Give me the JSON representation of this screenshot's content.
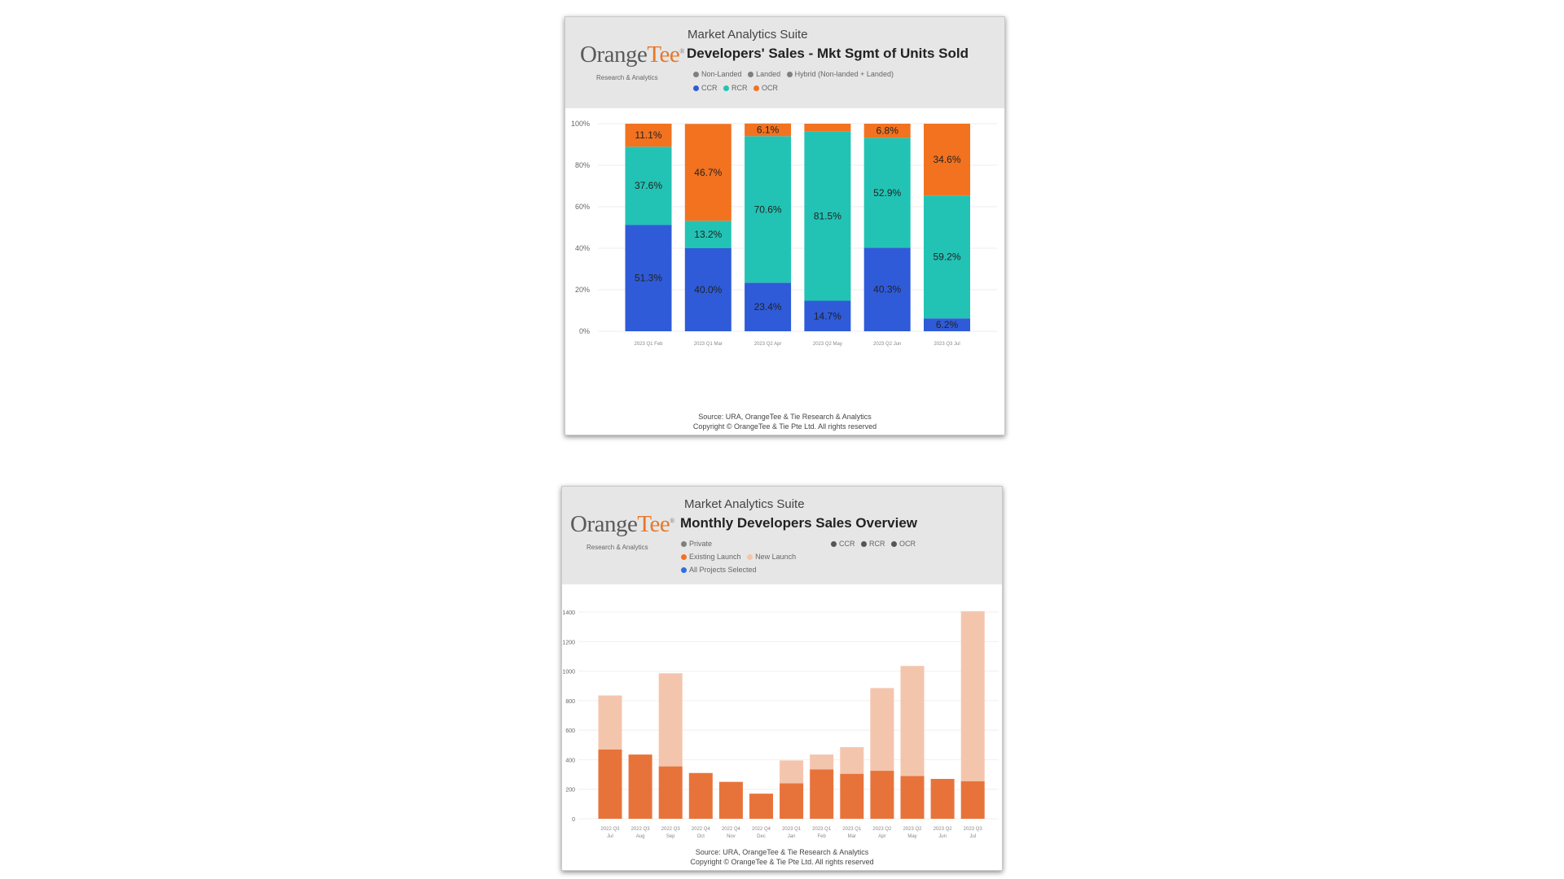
{
  "charts": [
    {
      "brand": {
        "name_a": "Orange",
        "name_b": "Tee",
        "sub": "Research & Analytics"
      },
      "suite": "Market Analytics Suite",
      "title": "Developers' Sales - Mkt Sgmt of Units Sold",
      "legend_row1": [
        {
          "label": "Non-Landed",
          "color": "#7f7f7f"
        },
        {
          "label": "Landed",
          "color": "#7f7f7f"
        },
        {
          "label": "Hybrid (Non-landed + Landed)",
          "color": "#7f7f7f"
        }
      ],
      "legend_row2": [
        {
          "label": "CCR",
          "color": "#2f5bd8"
        },
        {
          "label": "RCR",
          "color": "#22c3b4"
        },
        {
          "label": "OCR",
          "color": "#f27220"
        }
      ],
      "footer_source": "Source: URA, OrangeTee & Tie Research & Analytics",
      "footer_copyright": "Copyright © OrangeTee & Tie Pte Ltd. All rights reserved"
    },
    {
      "brand": {
        "name_a": "Orange",
        "name_b": "Tee",
        "sub": "Research & Analytics"
      },
      "suite": "Market Analytics Suite",
      "title": "Monthly Developers Sales Overview",
      "legend_row1": [
        {
          "label": "Private",
          "color": "#7f7f7f"
        }
      ],
      "legend_row2": [
        {
          "label": "Existing Launch",
          "color": "#f27220"
        },
        {
          "label": "New Launch",
          "color": "#f6c4a6"
        }
      ],
      "legend_row3": [
        {
          "label": "All Projects Selected",
          "color": "#2f6fe0"
        }
      ],
      "legend_right": [
        {
          "label": "CCR",
          "color": "#555555"
        },
        {
          "label": "RCR",
          "color": "#555555"
        },
        {
          "label": "OCR",
          "color": "#555555"
        }
      ],
      "footer_source": "Source: URA, OrangeTee & Tie Research & Analytics",
      "footer_copyright": "Copyright © OrangeTee & Tie Pte Ltd. All rights reserved"
    }
  ],
  "chart_data": [
    {
      "type": "bar",
      "stacked": true,
      "normalized": true,
      "categories": [
        "2023 Q1 Feb",
        "2023 Q1 Mar",
        "2023 Q2 Apr",
        "2023 Q2 May",
        "2023 Q2 Jun",
        "2023 Q3 Jul"
      ],
      "series": [
        {
          "name": "CCR",
          "color": "#2f5bd8",
          "values": [
            51.3,
            40.0,
            23.4,
            14.7,
            40.3,
            6.2
          ]
        },
        {
          "name": "RCR",
          "color": "#22c3b4",
          "values": [
            37.6,
            13.2,
            70.6,
            81.5,
            52.9,
            59.2
          ]
        },
        {
          "name": "OCR",
          "color": "#f27220",
          "values": [
            11.1,
            46.7,
            6.1,
            3.8,
            6.8,
            34.6
          ]
        }
      ],
      "data_labels": [
        [
          "51.3%",
          "40.0%",
          "23.4%",
          "14.7%",
          "40.3%",
          "6.2%"
        ],
        [
          "37.6%",
          "13.2%",
          "70.6%",
          "81.5%",
          "52.9%",
          "59.2%"
        ],
        [
          "11.1%",
          "46.7%",
          "6.1%",
          "",
          "6.8%",
          "34.6%"
        ]
      ],
      "ylim": [
        0,
        100
      ],
      "yticks": [
        "0%",
        "20%",
        "40%",
        "60%",
        "80%",
        "100%"
      ],
      "grid": true
    },
    {
      "type": "bar",
      "stacked": true,
      "categories_line1": [
        "2022 Q3",
        "2022 Q3",
        "2022 Q3",
        "2022 Q4",
        "2022 Q4",
        "2022 Q4",
        "2023 Q1",
        "2023 Q1",
        "2023 Q1",
        "2023 Q2",
        "2023 Q2",
        "2023 Q2",
        "2023 Q3"
      ],
      "categories_line2": [
        "Jul",
        "Aug",
        "Sep",
        "Oct",
        "Nov",
        "Dec",
        "Jan",
        "Feb",
        "Mar",
        "Apr",
        "May",
        "Jun",
        "Jul"
      ],
      "series": [
        {
          "name": "Existing Launch",
          "color": "#e8733a",
          "values": [
            470,
            435,
            355,
            310,
            250,
            170,
            240,
            335,
            305,
            325,
            290,
            270,
            255
          ]
        },
        {
          "name": "New Launch",
          "color": "#f4c5ad",
          "values": [
            365,
            0,
            630,
            0,
            0,
            0,
            155,
            100,
            180,
            560,
            745,
            0,
            1150
          ]
        }
      ],
      "ylim": [
        0,
        1400
      ],
      "yticks": [
        "0",
        "200",
        "400",
        "600",
        "800",
        "1000",
        "1200",
        "1400"
      ],
      "grid": true
    }
  ]
}
